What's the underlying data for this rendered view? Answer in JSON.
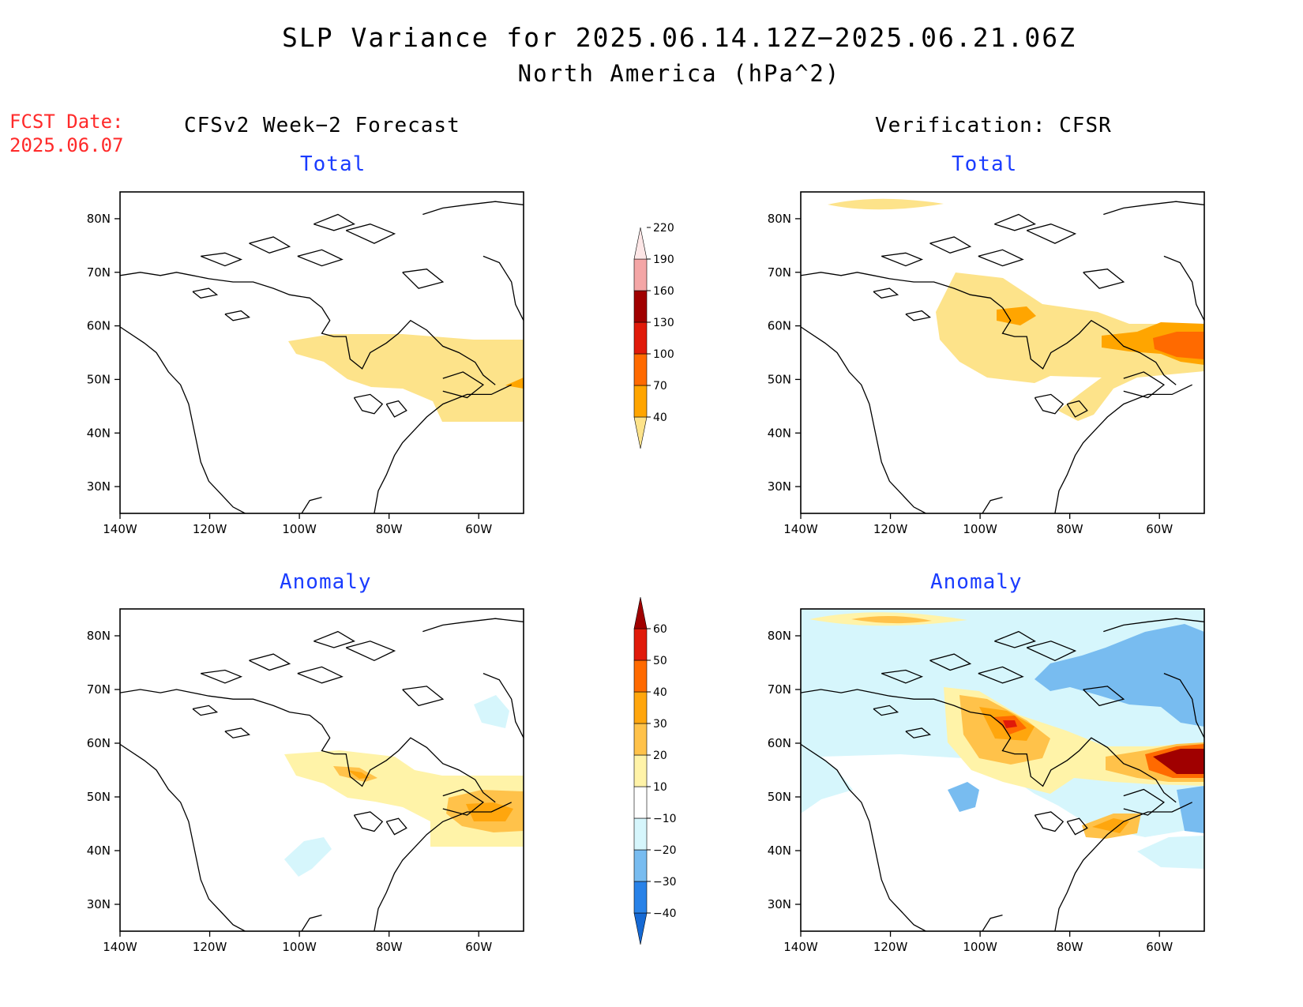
{
  "title": "SLP Variance for 2025.06.14.12Z−2025.06.21.06Z",
  "subtitle": "North America (hPa^2)",
  "fcst_label": "FCST Date:",
  "fcst_date": "2025.06.07",
  "left_column_title": "CFSv2 Week−2 Forecast",
  "right_column_title": "Verification: CFSR",
  "panels": {
    "total_label": "Total",
    "anomaly_label": "Anomaly"
  },
  "map_axes": {
    "lat_labels": [
      "80N",
      "70N",
      "60N",
      "50N",
      "40N",
      "30N"
    ],
    "lat_values": [
      80,
      70,
      60,
      50,
      40,
      30
    ],
    "lon_labels": [
      "140W",
      "120W",
      "100W",
      "80W",
      "60W"
    ],
    "lon_values": [
      -140,
      -120,
      -100,
      -80,
      -60
    ],
    "lat_range": [
      25,
      85
    ],
    "lon_range": [
      -140,
      -50
    ]
  },
  "total_colorbar": {
    "levels": [
      "40",
      "70",
      "100",
      "130",
      "160",
      "190",
      "220"
    ],
    "colors": [
      "#fde38a",
      "#ffa500",
      "#ff6a00",
      "#e01a0a",
      "#a00000",
      "#f4a6a6",
      "#fde6e6"
    ]
  },
  "anomaly_colorbar": {
    "levels": [
      "−40",
      "−30",
      "−20",
      "−10",
      "10",
      "20",
      "30",
      "40",
      "50",
      "60"
    ],
    "colors": [
      "#1569d4",
      "#2882e8",
      "#78bcf0",
      "#d6f6fc",
      "#ffffff",
      "#fff3a8",
      "#ffc24a",
      "#ffa60d",
      "#ff6a00",
      "#e01a0a",
      "#a00000"
    ]
  }
}
